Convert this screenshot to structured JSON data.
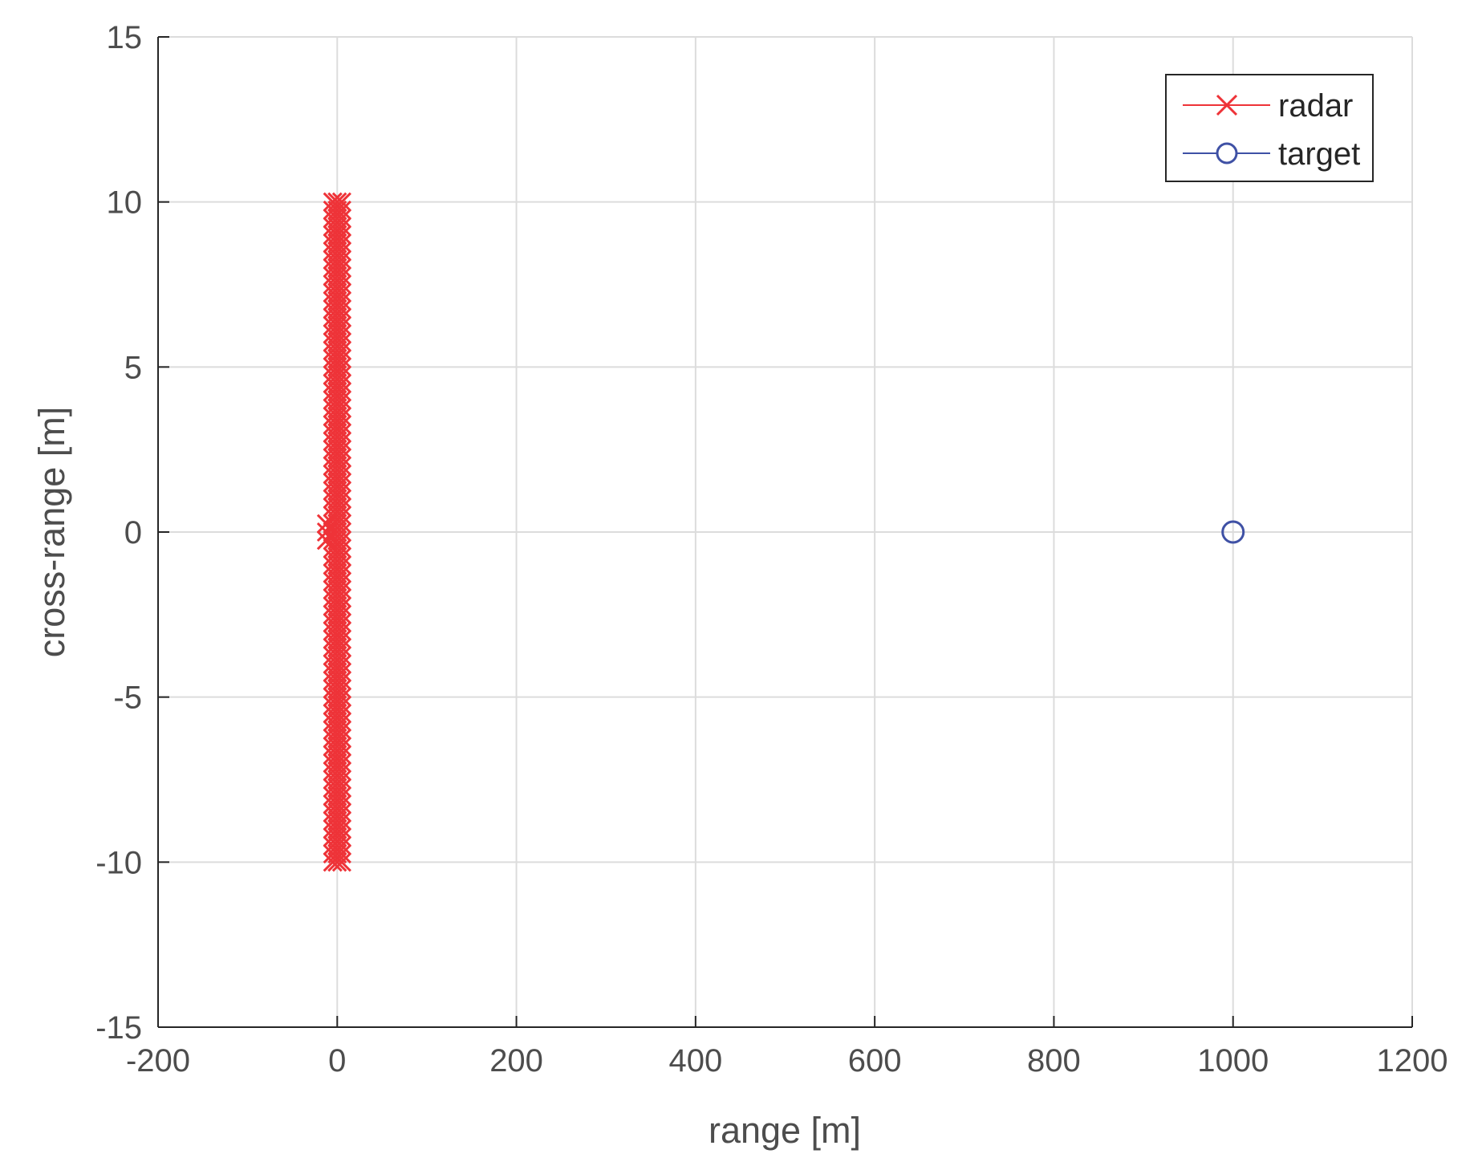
{
  "chart_data": {
    "type": "scatter",
    "xlabel": "range [m]",
    "ylabel": "cross-range [m]",
    "xlim": [
      -200,
      1200
    ],
    "ylim": [
      -15,
      15
    ],
    "xticks": [
      "-200",
      "0",
      "200",
      "400",
      "600",
      "800",
      "1000",
      "1200"
    ],
    "yticks": [
      "15",
      "10",
      "5",
      "0",
      "-5",
      "-10",
      "-15"
    ],
    "grid": true,
    "legend_position": "top-right",
    "series": [
      {
        "name": "radar",
        "color": "#ee3338",
        "marker": "x",
        "x_min": -5,
        "x_max": 5,
        "y_min": -10,
        "y_max": 10,
        "y_step": 0.25,
        "description_points": "dense column of x markers at range ≈ 0, cross-range from -10 to 10"
      },
      {
        "name": "target",
        "color": "#3f51a5",
        "marker": "o",
        "points": [
          {
            "x": 1000,
            "y": 0
          }
        ]
      }
    ]
  }
}
